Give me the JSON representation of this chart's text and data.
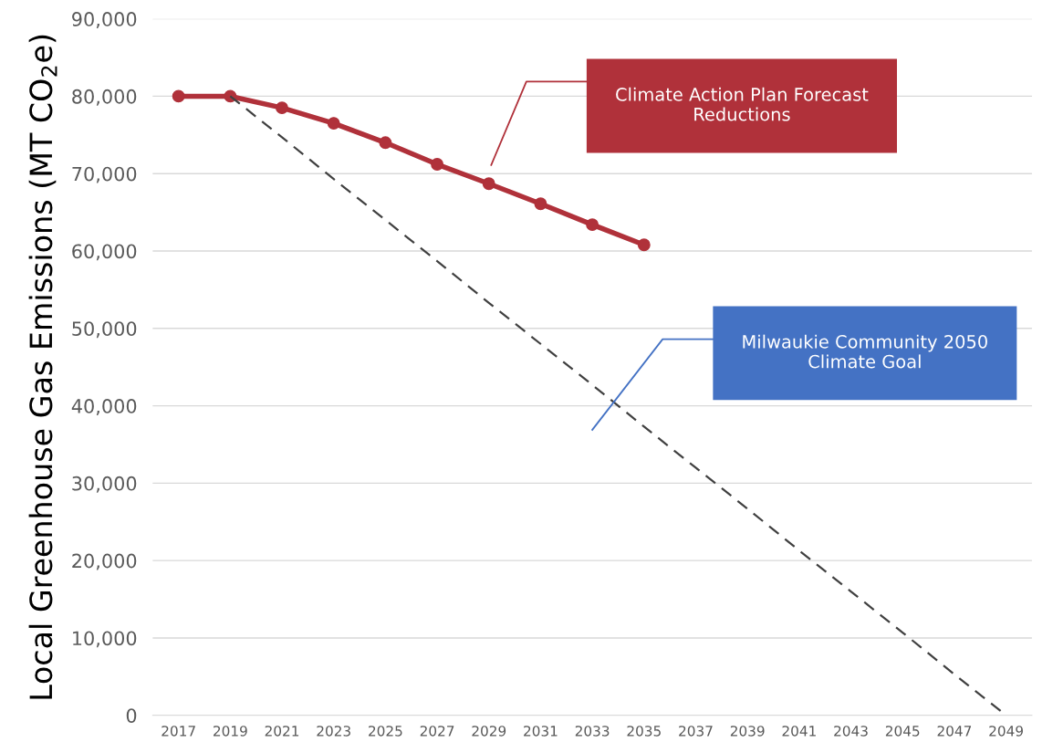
{
  "chart_data": {
    "type": "line",
    "ylabel": "Local Greenhouse Gas Emissions (MT CO$_{2}$e)",
    "categories": [
      "2017",
      "2019",
      "2021",
      "2023",
      "2025",
      "2027",
      "2029",
      "2031",
      "2033",
      "2035",
      "2037",
      "2039",
      "2041",
      "2043",
      "2045",
      "2047",
      "2049"
    ],
    "series": [
      {
        "color": "#b0313a",
        "marker": "circle",
        "line_style": "solid",
        "values": [
          80000,
          80000,
          78500,
          76500,
          74000,
          71200,
          68700,
          66100,
          63400,
          60800,
          null,
          null,
          null,
          null,
          null,
          null,
          null
        ]
      },
      {
        "color": "#404040",
        "marker": "none",
        "line_style": "dashed",
        "values": [
          null,
          80000,
          74700,
          69300,
          64000,
          58700,
          53300,
          48000,
          42700,
          37300,
          32000,
          26700,
          21300,
          16000,
          10700,
          5300,
          0
        ]
      }
    ],
    "ylim": [
      0,
      90000
    ],
    "yticks": [
      {
        "value": 0,
        "label": "0"
      },
      {
        "value": 10000,
        "label": "10,000"
      },
      {
        "value": 20000,
        "label": "20,000"
      },
      {
        "value": 30000,
        "label": "30,000"
      },
      {
        "value": 40000,
        "label": "40,000"
      },
      {
        "value": 50000,
        "label": "50,000"
      },
      {
        "value": 60000,
        "label": "60,000"
      },
      {
        "value": 70000,
        "label": "70,000"
      },
      {
        "value": 80000,
        "label": "80,000"
      },
      {
        "value": 90000,
        "label": "90,000"
      }
    ],
    "grid": "y",
    "annotations": [
      "Climate Action Plan Forecast\nReductions",
      "Milwaukie Community 2050\nClimate Goal"
    ]
  }
}
